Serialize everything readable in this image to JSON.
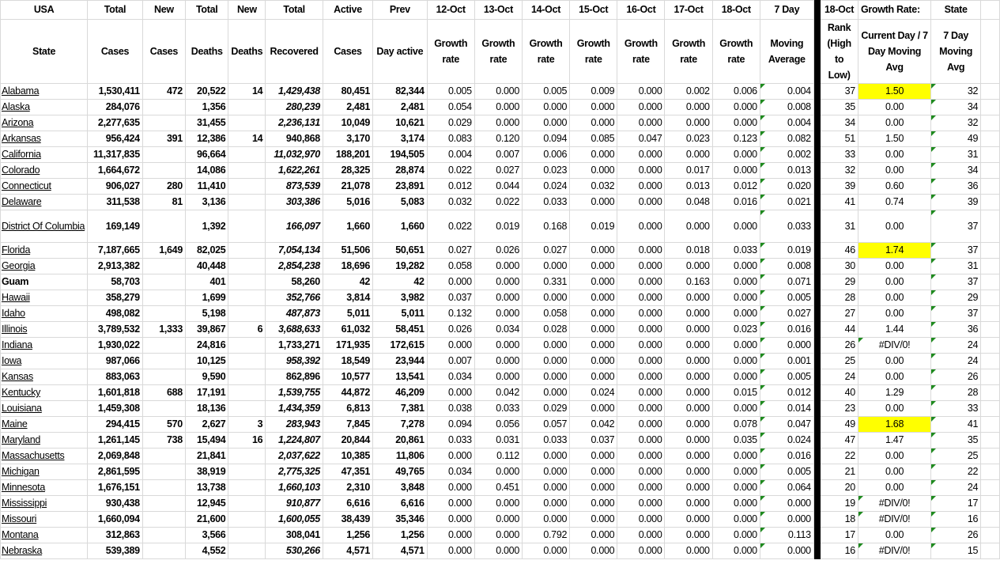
{
  "sheet": {
    "header_row1": [
      "USA",
      "Total",
      "New",
      "Total",
      "New",
      "Total",
      "Active",
      "Prev",
      "12-Oct",
      "13-Oct",
      "14-Oct",
      "15-Oct",
      "16-Oct",
      "17-Oct",
      "18-Oct",
      "7 Day",
      "18-Oct",
      "Growth Rate:",
      "State",
      ""
    ],
    "header_row2": [
      "State",
      "Cases",
      "Cases",
      "Deaths",
      "Deaths",
      "Recovered",
      "Cases",
      "Day active",
      "Growth rate",
      "Growth rate",
      "Growth rate",
      "Growth rate",
      "Growth rate",
      "Growth rate",
      "Growth rate",
      "Moving Average",
      "Rank (High to Low)",
      "Current Day / 7 Day Moving Avg",
      "7 Day Moving Avg",
      ""
    ],
    "colors": {
      "highlight": "#ffff00",
      "separator": "#000000",
      "error_indicator": "#1e8a1e",
      "gridline": "#d9d9d9"
    },
    "rows": [
      {
        "state": "Alabama",
        "link": true,
        "rec_italic": true,
        "highlight": true,
        "cells": [
          "1,530,411",
          "472",
          "20,522",
          "14",
          "1,429,438",
          "80,451",
          "82,344",
          "0.005",
          "0.000",
          "0.005",
          "0.009",
          "0.000",
          "0.002",
          "0.006",
          "0.004",
          "37",
          "1.50",
          "32"
        ]
      },
      {
        "state": "Alaska",
        "link": true,
        "rec_italic": true,
        "cells": [
          "284,076",
          "",
          "1,356",
          "",
          "280,239",
          "2,481",
          "2,481",
          "0.054",
          "0.000",
          "0.000",
          "0.000",
          "0.000",
          "0.000",
          "0.000",
          "0.008",
          "35",
          "0.00",
          "34"
        ]
      },
      {
        "state": "Arizona",
        "link": true,
        "rec_italic": true,
        "cells": [
          "2,277,635",
          "",
          "31,455",
          "",
          "2,236,131",
          "10,049",
          "10,621",
          "0.029",
          "0.000",
          "0.000",
          "0.000",
          "0.000",
          "0.000",
          "0.000",
          "0.004",
          "34",
          "0.00",
          "32"
        ]
      },
      {
        "state": "Arkansas",
        "link": true,
        "rec_italic": false,
        "cells": [
          "956,424",
          "391",
          "12,386",
          "14",
          "940,868",
          "3,170",
          "3,174",
          "0.083",
          "0.120",
          "0.094",
          "0.085",
          "0.047",
          "0.023",
          "0.123",
          "0.082",
          "51",
          "1.50",
          "49"
        ]
      },
      {
        "state": "California",
        "link": true,
        "rec_italic": true,
        "cells": [
          "11,317,835",
          "",
          "96,664",
          "",
          "11,032,970",
          "188,201",
          "194,505",
          "0.004",
          "0.007",
          "0.006",
          "0.000",
          "0.000",
          "0.000",
          "0.000",
          "0.002",
          "33",
          "0.00",
          "31"
        ]
      },
      {
        "state": "Colorado",
        "link": true,
        "rec_italic": true,
        "cells": [
          "1,664,672",
          "",
          "14,086",
          "",
          "1,622,261",
          "28,325",
          "28,874",
          "0.022",
          "0.027",
          "0.023",
          "0.000",
          "0.000",
          "0.017",
          "0.000",
          "0.013",
          "32",
          "0.00",
          "34"
        ]
      },
      {
        "state": "Connecticut",
        "link": true,
        "rec_italic": true,
        "cells": [
          "906,027",
          "280",
          "11,410",
          "",
          "873,539",
          "21,078",
          "23,891",
          "0.012",
          "0.044",
          "0.024",
          "0.032",
          "0.000",
          "0.013",
          "0.012",
          "0.020",
          "39",
          "0.60",
          "36"
        ]
      },
      {
        "state": "Delaware",
        "link": true,
        "rec_italic": true,
        "cells": [
          "311,538",
          "81",
          "3,136",
          "",
          "303,386",
          "5,016",
          "5,083",
          "0.032",
          "0.022",
          "0.033",
          "0.000",
          "0.000",
          "0.048",
          "0.016",
          "0.021",
          "41",
          "0.74",
          "39"
        ]
      },
      {
        "state": "District Of Columbia",
        "link": true,
        "rec_italic": true,
        "tall": true,
        "cells": [
          "169,149",
          "",
          "1,392",
          "",
          "166,097",
          "1,660",
          "1,660",
          "0.022",
          "0.019",
          "0.168",
          "0.019",
          "0.000",
          "0.000",
          "0.000",
          "0.033",
          "31",
          "0.00",
          "37"
        ]
      },
      {
        "state": "Florida",
        "link": true,
        "rec_italic": true,
        "highlight": true,
        "cells": [
          "7,187,665",
          "1,649",
          "82,025",
          "",
          "7,054,134",
          "51,506",
          "50,651",
          "0.027",
          "0.026",
          "0.027",
          "0.000",
          "0.000",
          "0.018",
          "0.033",
          "0.019",
          "46",
          "1.74",
          "37"
        ]
      },
      {
        "state": "Georgia",
        "link": true,
        "rec_italic": true,
        "cells": [
          "2,913,382",
          "",
          "40,448",
          "",
          "2,854,238",
          "18,696",
          "19,282",
          "0.058",
          "0.000",
          "0.000",
          "0.000",
          "0.000",
          "0.000",
          "0.000",
          "0.008",
          "30",
          "0.00",
          "31"
        ]
      },
      {
        "state": "Guam",
        "link": false,
        "rec_italic": false,
        "cells": [
          "58,703",
          "",
          "401",
          "",
          "58,260",
          "42",
          "42",
          "0.000",
          "0.000",
          "0.331",
          "0.000",
          "0.000",
          "0.163",
          "0.000",
          "0.071",
          "29",
          "0.00",
          "37"
        ]
      },
      {
        "state": "Hawaii",
        "link": true,
        "rec_italic": true,
        "cells": [
          "358,279",
          "",
          "1,699",
          "",
          "352,766",
          "3,814",
          "3,982",
          "0.037",
          "0.000",
          "0.000",
          "0.000",
          "0.000",
          "0.000",
          "0.000",
          "0.005",
          "28",
          "0.00",
          "29"
        ]
      },
      {
        "state": "Idaho",
        "link": true,
        "rec_italic": true,
        "cells": [
          "498,082",
          "",
          "5,198",
          "",
          "487,873",
          "5,011",
          "5,011",
          "0.132",
          "0.000",
          "0.058",
          "0.000",
          "0.000",
          "0.000",
          "0.000",
          "0.027",
          "27",
          "0.00",
          "37"
        ]
      },
      {
        "state": "Illinois",
        "link": true,
        "rec_italic": true,
        "cells": [
          "3,789,532",
          "1,333",
          "39,867",
          "6",
          "3,688,633",
          "61,032",
          "58,451",
          "0.026",
          "0.034",
          "0.028",
          "0.000",
          "0.000",
          "0.000",
          "0.023",
          "0.016",
          "44",
          "1.44",
          "36"
        ]
      },
      {
        "state": "Indiana",
        "link": true,
        "rec_italic": false,
        "cells": [
          "1,930,022",
          "",
          "24,816",
          "",
          "1,733,271",
          "171,935",
          "172,615",
          "0.000",
          "0.000",
          "0.000",
          "0.000",
          "0.000",
          "0.000",
          "0.000",
          "0.000",
          "26",
          "#DIV/0!",
          "24"
        ]
      },
      {
        "state": "Iowa",
        "link": true,
        "rec_italic": true,
        "cells": [
          "987,066",
          "",
          "10,125",
          "",
          "958,392",
          "18,549",
          "23,944",
          "0.007",
          "0.000",
          "0.000",
          "0.000",
          "0.000",
          "0.000",
          "0.000",
          "0.001",
          "25",
          "0.00",
          "24"
        ]
      },
      {
        "state": "Kansas",
        "link": true,
        "rec_italic": false,
        "cells": [
          "883,063",
          "",
          "9,590",
          "",
          "862,896",
          "10,577",
          "13,541",
          "0.034",
          "0.000",
          "0.000",
          "0.000",
          "0.000",
          "0.000",
          "0.000",
          "0.005",
          "24",
          "0.00",
          "26"
        ]
      },
      {
        "state": "Kentucky",
        "link": true,
        "rec_italic": true,
        "cells": [
          "1,601,818",
          "688",
          "17,191",
          "",
          "1,539,755",
          "44,872",
          "46,209",
          "0.000",
          "0.042",
          "0.000",
          "0.024",
          "0.000",
          "0.000",
          "0.015",
          "0.012",
          "40",
          "1.29",
          "28"
        ]
      },
      {
        "state": "Louisiana",
        "link": true,
        "rec_italic": true,
        "cells": [
          "1,459,308",
          "",
          "18,136",
          "",
          "1,434,359",
          "6,813",
          "7,381",
          "0.038",
          "0.033",
          "0.029",
          "0.000",
          "0.000",
          "0.000",
          "0.000",
          "0.014",
          "23",
          "0.00",
          "33"
        ]
      },
      {
        "state": "Maine",
        "link": true,
        "rec_italic": true,
        "highlight": true,
        "cells": [
          "294,415",
          "570",
          "2,627",
          "3",
          "283,943",
          "7,845",
          "7,278",
          "0.094",
          "0.056",
          "0.057",
          "0.042",
          "0.000",
          "0.000",
          "0.078",
          "0.047",
          "49",
          "1.68",
          "41"
        ]
      },
      {
        "state": "Maryland",
        "link": true,
        "rec_italic": true,
        "cells": [
          "1,261,145",
          "738",
          "15,494",
          "16",
          "1,224,807",
          "20,844",
          "20,861",
          "0.033",
          "0.031",
          "0.033",
          "0.037",
          "0.000",
          "0.000",
          "0.035",
          "0.024",
          "47",
          "1.47",
          "35"
        ]
      },
      {
        "state": "Massachusetts",
        "link": true,
        "rec_italic": true,
        "cells": [
          "2,069,848",
          "",
          "21,841",
          "",
          "2,037,622",
          "10,385",
          "11,806",
          "0.000",
          "0.112",
          "0.000",
          "0.000",
          "0.000",
          "0.000",
          "0.000",
          "0.016",
          "22",
          "0.00",
          "25"
        ]
      },
      {
        "state": "Michigan",
        "link": true,
        "rec_italic": true,
        "cells": [
          "2,861,595",
          "",
          "38,919",
          "",
          "2,775,325",
          "47,351",
          "49,765",
          "0.034",
          "0.000",
          "0.000",
          "0.000",
          "0.000",
          "0.000",
          "0.000",
          "0.005",
          "21",
          "0.00",
          "22"
        ]
      },
      {
        "state": "Minnesota",
        "link": true,
        "rec_italic": true,
        "cells": [
          "1,676,151",
          "",
          "13,738",
          "",
          "1,660,103",
          "2,310",
          "3,848",
          "0.000",
          "0.451",
          "0.000",
          "0.000",
          "0.000",
          "0.000",
          "0.000",
          "0.064",
          "20",
          "0.00",
          "24"
        ]
      },
      {
        "state": "Mississippi",
        "link": true,
        "rec_italic": true,
        "cells": [
          "930,438",
          "",
          "12,945",
          "",
          "910,877",
          "6,616",
          "6,616",
          "0.000",
          "0.000",
          "0.000",
          "0.000",
          "0.000",
          "0.000",
          "0.000",
          "0.000",
          "19",
          "#DIV/0!",
          "17"
        ]
      },
      {
        "state": "Missouri",
        "link": true,
        "rec_italic": true,
        "cells": [
          "1,660,094",
          "",
          "21,600",
          "",
          "1,600,055",
          "38,439",
          "35,346",
          "0.000",
          "0.000",
          "0.000",
          "0.000",
          "0.000",
          "0.000",
          "0.000",
          "0.000",
          "18",
          "#DIV/0!",
          "16"
        ]
      },
      {
        "state": "Montana",
        "link": true,
        "rec_italic": false,
        "cells": [
          "312,863",
          "",
          "3,566",
          "",
          "308,041",
          "1,256",
          "1,256",
          "0.000",
          "0.000",
          "0.792",
          "0.000",
          "0.000",
          "0.000",
          "0.000",
          "0.113",
          "17",
          "0.00",
          "26"
        ]
      },
      {
        "state": "Nebraska",
        "link": true,
        "rec_italic": true,
        "cells": [
          "539,389",
          "",
          "4,552",
          "",
          "530,266",
          "4,571",
          "4,571",
          "0.000",
          "0.000",
          "0.000",
          "0.000",
          "0.000",
          "0.000",
          "0.000",
          "0.000",
          "16",
          "#DIV/0!",
          "15"
        ]
      }
    ]
  }
}
